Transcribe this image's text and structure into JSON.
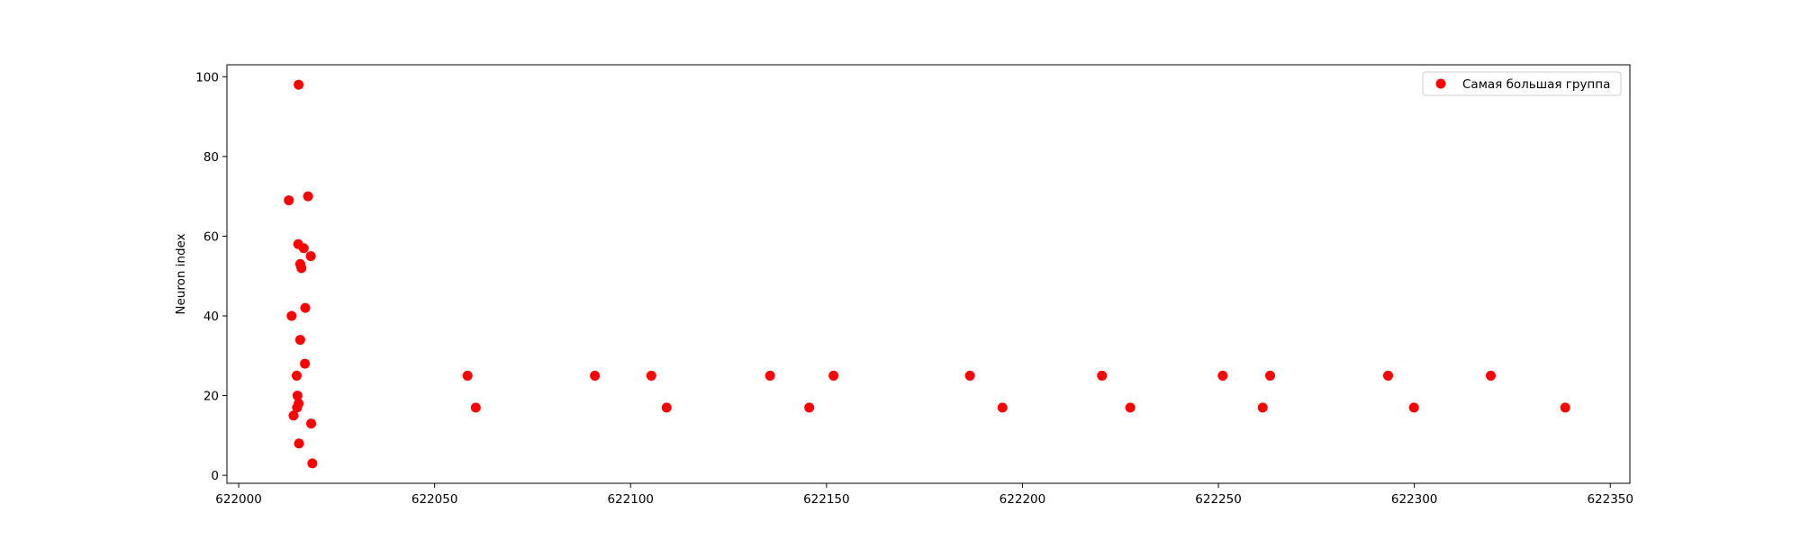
{
  "chart_data": {
    "type": "scatter",
    "title": "",
    "xlabel": "",
    "ylabel": "Neuron index",
    "xlim": [
      621997,
      622355
    ],
    "ylim": [
      -2,
      103
    ],
    "x_ticks": [
      622000,
      622050,
      622100,
      622150,
      622200,
      622250,
      622300,
      622350
    ],
    "y_ticks": [
      0,
      20,
      40,
      60,
      80,
      100
    ],
    "grid": false,
    "legend_position": "top-right",
    "series": [
      {
        "name": "Самая большая группа",
        "color": "#ff0000",
        "marker": "circle",
        "points": [
          {
            "x": 622015.3,
            "y": 98
          },
          {
            "x": 622017.7,
            "y": 70
          },
          {
            "x": 622012.8,
            "y": 69
          },
          {
            "x": 622015.2,
            "y": 58
          },
          {
            "x": 622016.6,
            "y": 57
          },
          {
            "x": 622018.4,
            "y": 55
          },
          {
            "x": 622015.7,
            "y": 53
          },
          {
            "x": 622016.0,
            "y": 52
          },
          {
            "x": 622017.0,
            "y": 42
          },
          {
            "x": 622013.5,
            "y": 40
          },
          {
            "x": 622015.7,
            "y": 34
          },
          {
            "x": 622016.9,
            "y": 28
          },
          {
            "x": 622014.8,
            "y": 25
          },
          {
            "x": 622015.0,
            "y": 20
          },
          {
            "x": 622015.3,
            "y": 18
          },
          {
            "x": 622014.9,
            "y": 17
          },
          {
            "x": 622014.0,
            "y": 15
          },
          {
            "x": 622018.5,
            "y": 13
          },
          {
            "x": 622015.4,
            "y": 8
          },
          {
            "x": 622018.8,
            "y": 3
          },
          {
            "x": 622058.4,
            "y": 25
          },
          {
            "x": 622060.5,
            "y": 17
          },
          {
            "x": 622090.9,
            "y": 25
          },
          {
            "x": 622105.3,
            "y": 25
          },
          {
            "x": 622109.2,
            "y": 17
          },
          {
            "x": 622135.6,
            "y": 25
          },
          {
            "x": 622145.6,
            "y": 17
          },
          {
            "x": 622151.8,
            "y": 25
          },
          {
            "x": 622186.6,
            "y": 25
          },
          {
            "x": 622194.9,
            "y": 17
          },
          {
            "x": 622220.3,
            "y": 25
          },
          {
            "x": 622227.5,
            "y": 17
          },
          {
            "x": 622251.1,
            "y": 25
          },
          {
            "x": 622261.3,
            "y": 17
          },
          {
            "x": 622263.2,
            "y": 25
          },
          {
            "x": 622293.3,
            "y": 25
          },
          {
            "x": 622299.9,
            "y": 17
          },
          {
            "x": 622319.5,
            "y": 25
          },
          {
            "x": 622338.5,
            "y": 17
          }
        ]
      }
    ]
  }
}
